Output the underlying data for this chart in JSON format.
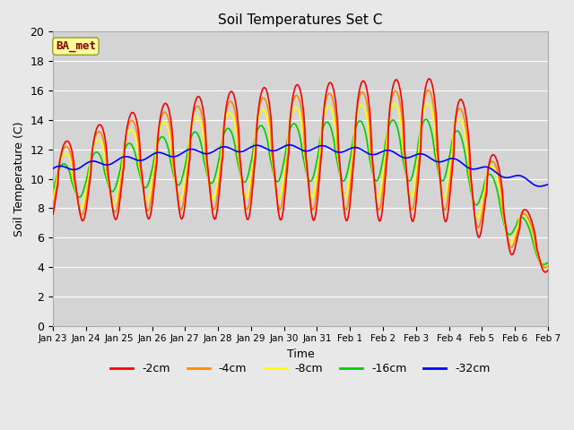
{
  "title": "Soil Temperatures Set C",
  "xlabel": "Time",
  "ylabel": "Soil Temperature (C)",
  "ylim": [
    0,
    20
  ],
  "xlim": [
    0,
    15
  ],
  "fig_bg": "#e8e8e8",
  "plot_bg": "#d4d4d4",
  "grid_color": "#ffffff",
  "annotation_text": "BA_met",
  "annotation_bg": "#ffff99",
  "annotation_border": "#999933",
  "annotation_text_color": "#880000",
  "tick_labels": [
    "Jan 23",
    "Jan 24",
    "Jan 25",
    "Jan 26",
    "Jan 27",
    "Jan 28",
    "Jan 29",
    "Jan 30",
    "Jan 31",
    "Feb 1",
    "Feb 2",
    "Feb 3",
    "Feb 4",
    "Feb 5",
    "Feb 6",
    "Feb 7"
  ],
  "legend_labels": [
    "-2cm",
    "-4cm",
    "-8cm",
    "-16cm",
    "-32cm"
  ],
  "legend_colors": [
    "#ff0000",
    "#ff8800",
    "#ffff00",
    "#00cc00",
    "#0000ff"
  ],
  "line_width": 1.2
}
